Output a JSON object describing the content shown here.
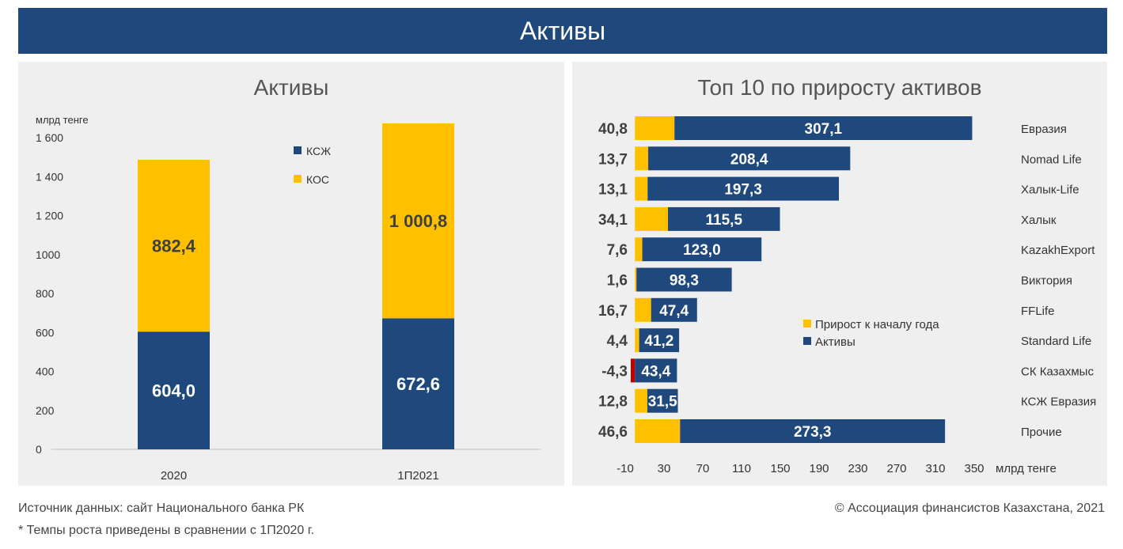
{
  "header": {
    "title": "Активы"
  },
  "colors": {
    "ksj": "#1f497d",
    "kos": "#ffc000",
    "negative": "#c00000",
    "banner": "#1f497d"
  },
  "chart_data": [
    {
      "type": "bar",
      "stacked": true,
      "title": "Активы",
      "ylabel": "млрд тенге",
      "ylim": [
        0,
        1600
      ],
      "yticks": [
        0,
        200,
        400,
        600,
        800,
        1000,
        1200,
        1400,
        1600
      ],
      "ytick_labels": [
        "0",
        "200",
        "400",
        "600",
        "800",
        "1000",
        "1 200",
        "1 400",
        "1 600"
      ],
      "categories": [
        "2020",
        "1П2021"
      ],
      "series": [
        {
          "name": "КСЖ",
          "values": [
            604.0,
            672.6
          ],
          "labels": [
            "604,0",
            "672,6"
          ]
        },
        {
          "name": "КОС",
          "values": [
            882.4,
            1000.8
          ],
          "labels": [
            "882,4",
            "1 000,8"
          ]
        }
      ],
      "legend_position": "inside-top-right",
      "grid": false
    },
    {
      "type": "bar",
      "orientation": "horizontal",
      "stacked": true,
      "title": "Топ 10 по приросту активов",
      "xlabel": "млрд тенге",
      "xlim": [
        -10,
        350
      ],
      "xticks": [
        -10,
        30,
        70,
        110,
        150,
        190,
        230,
        270,
        310,
        350
      ],
      "categories": [
        "Евразия",
        "Nomad Life",
        "Халык-Life",
        "Халык",
        "KazakhExport",
        "Виктория",
        "FFLife",
        "Standard Life",
        "СК Казахмыс",
        "КСЖ Евразия",
        "Прочие"
      ],
      "series": [
        {
          "name": "Прирост к началу года",
          "values": [
            40.8,
            13.7,
            13.1,
            34.1,
            7.6,
            1.6,
            16.7,
            4.4,
            -4.3,
            12.8,
            46.6
          ],
          "labels": [
            "40,8",
            "13,7",
            "13,1",
            "34,1",
            "7,6",
            "1,6",
            "16,7",
            "4,4",
            "-4,3",
            "12,8",
            "46,6"
          ]
        },
        {
          "name": "Активы",
          "values": [
            307.1,
            208.4,
            197.3,
            115.5,
            123.0,
            98.3,
            47.4,
            41.2,
            43.4,
            31.5,
            273.3
          ],
          "labels": [
            "307,1",
            "208,4",
            "197,3",
            "115,5",
            "123,0",
            "98,3",
            "47,4",
            "41,2",
            "43,4",
            "31,5",
            "273,3"
          ]
        }
      ],
      "legend_position": "inside-center",
      "grid": false
    }
  ],
  "footer": {
    "source": "Источник данных: сайт Национального банка РК",
    "note": "* Темпы роста приведены в сравнении с 1П2020 г.",
    "copyright": "© Ассоциация финансистов Казахстана, 2021"
  }
}
